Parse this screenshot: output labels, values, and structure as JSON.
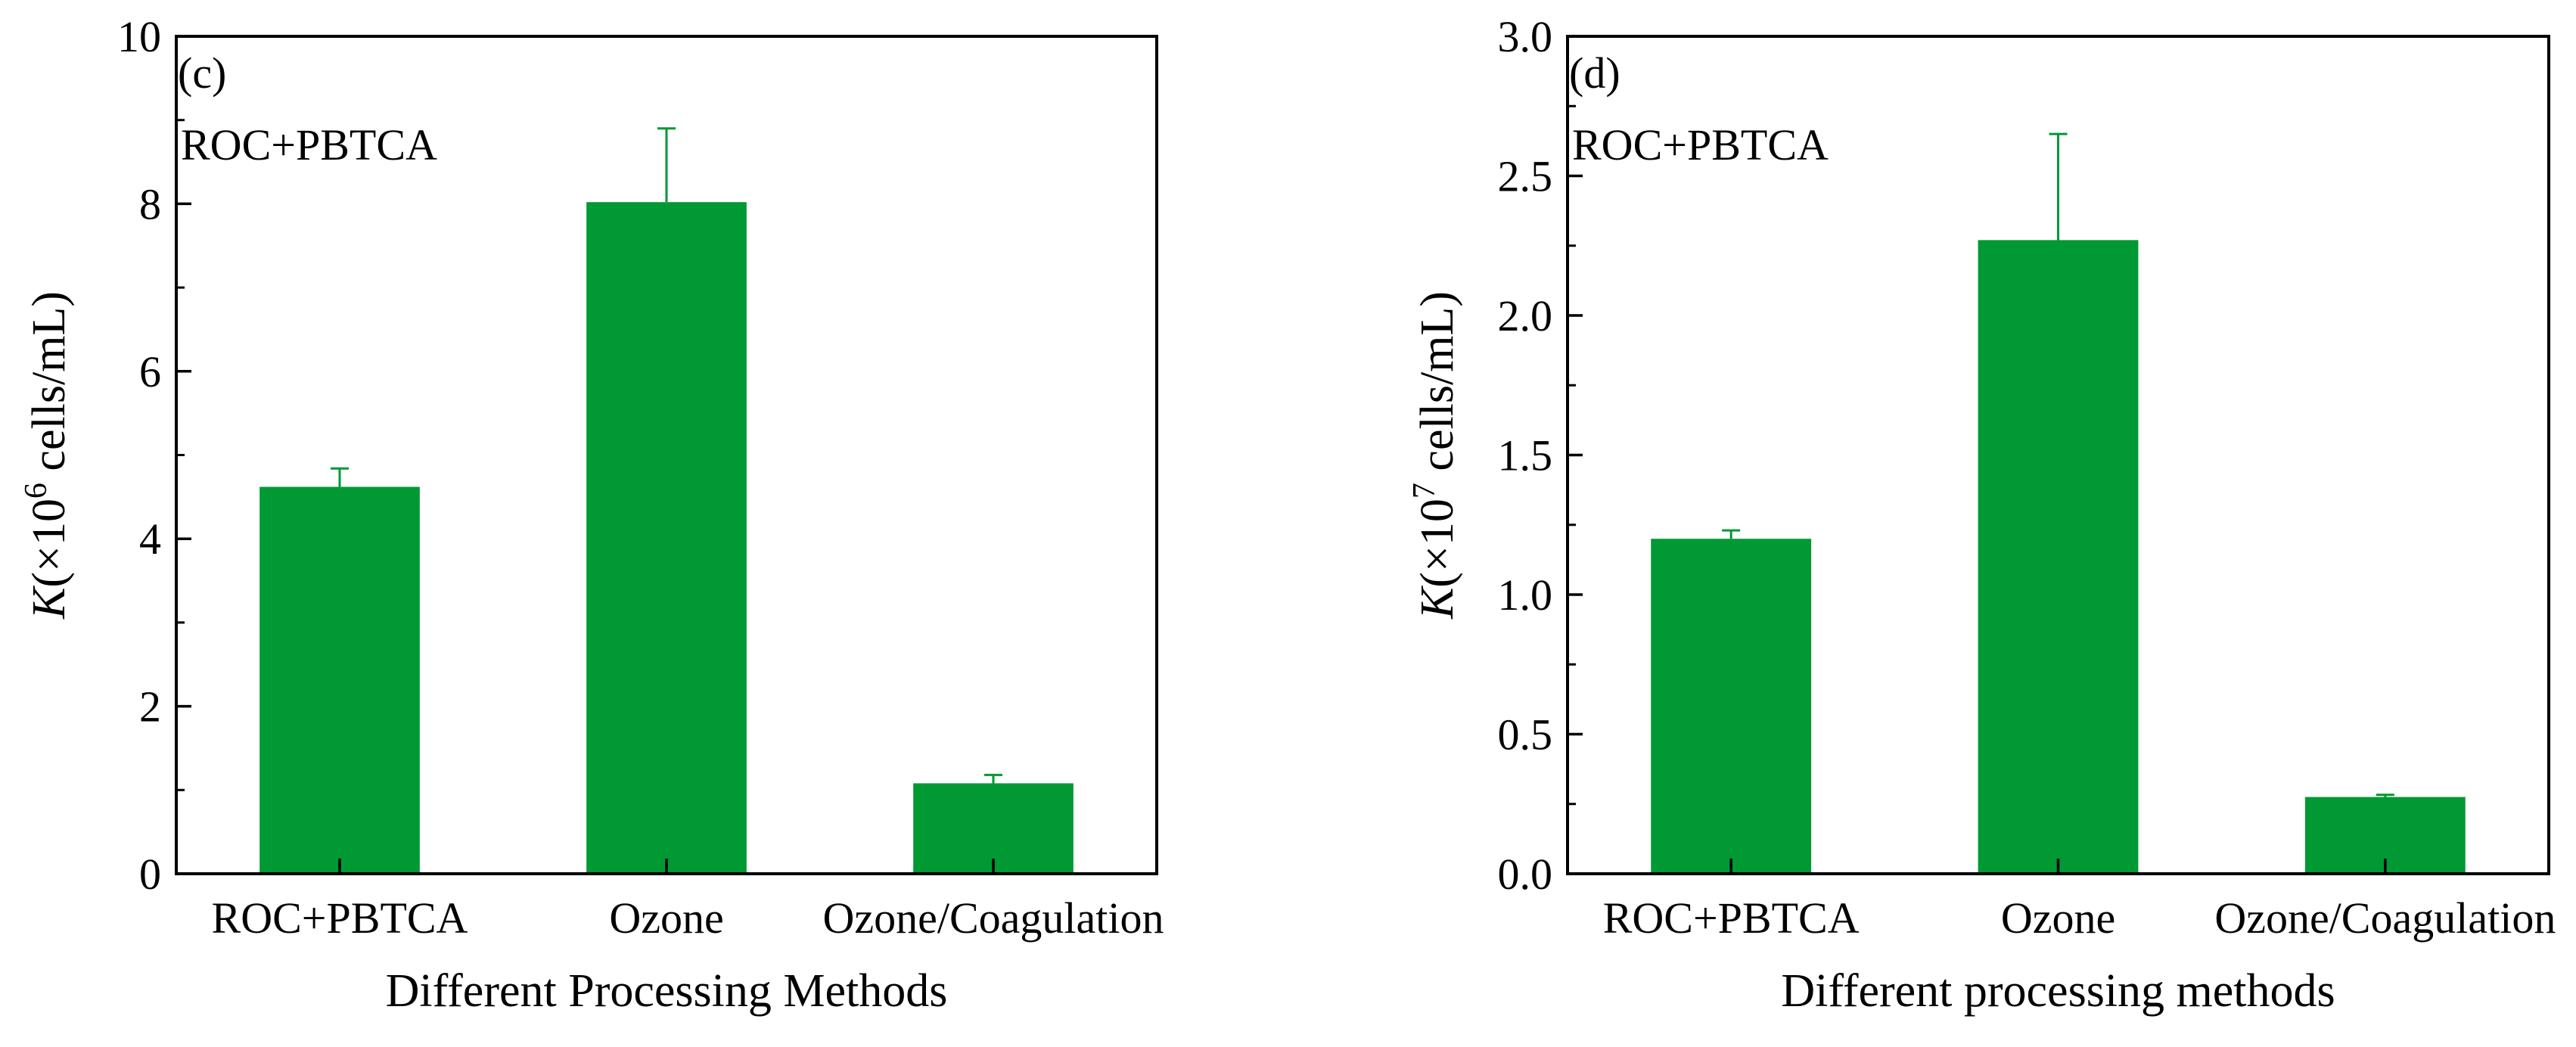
{
  "colors": {
    "bar": "#009933",
    "axis": "#000000"
  },
  "chart_data": [
    {
      "type": "bar",
      "panel_label": "(c)",
      "annotation": "ROC+PBTCA",
      "categories": [
        "ROC+PBTCA",
        "Ozone",
        "Ozone/Coagulation"
      ],
      "values": [
        4.62,
        8.02,
        1.08
      ],
      "errors": [
        0.22,
        0.88,
        0.1
      ],
      "ylim": [
        0,
        10
      ],
      "yticks": [
        0,
        2,
        4,
        6,
        8,
        10
      ],
      "ytick_labels": [
        "0",
        "2",
        "4",
        "6",
        "8",
        "10"
      ],
      "minor_step": 1,
      "xlabel": "Different Processing Methods",
      "ylabel": {
        "italic": "K",
        "prefix": "(×10",
        "exp": "6",
        "suffix": " cells/mL)"
      }
    },
    {
      "type": "bar",
      "panel_label": "(d)",
      "annotation": "ROC+PBTCA",
      "categories": [
        "ROC+PBTCA",
        "Ozone",
        "Ozone/Coagulation"
      ],
      "values": [
        1.2,
        2.27,
        0.275
      ],
      "errors": [
        0.03,
        0.38,
        0.008
      ],
      "ylim": [
        0,
        3
      ],
      "yticks": [
        0,
        0.5,
        1.0,
        1.5,
        2.0,
        2.5,
        3.0
      ],
      "ytick_labels": [
        "0.0",
        "0.5",
        "1.0",
        "1.5",
        "2.0",
        "2.5",
        "3.0"
      ],
      "minor_step": 0.25,
      "xlabel": "Different processing methods",
      "ylabel": {
        "italic": "K",
        "prefix": "(×10",
        "exp": "7",
        "suffix": " cells/mL)"
      }
    }
  ]
}
